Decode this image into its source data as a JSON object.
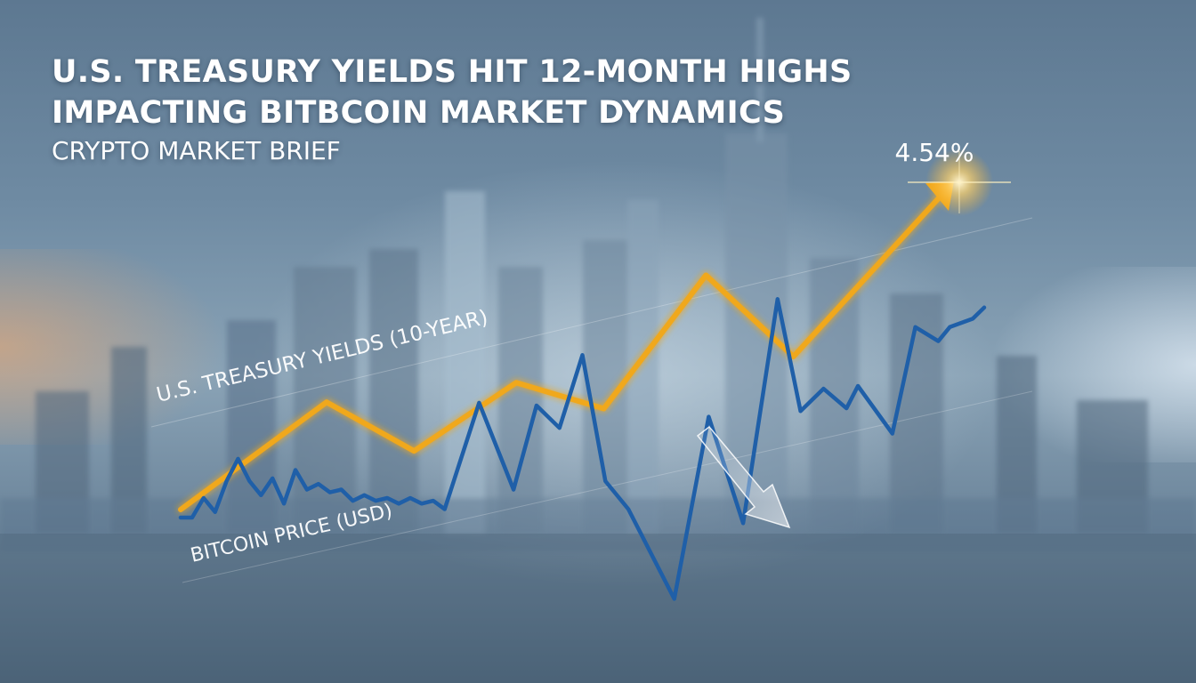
{
  "headline": {
    "line1": "U.S. TREASURY YIELDS HIT 12-MONTH HIGHS",
    "line2": "IMPACTING BITBCOIN MARKET DYNAMICS",
    "subtitle": "CRYPTO MARKET BRIEF"
  },
  "colors": {
    "yield_line": "#f0a81c",
    "bitcoin_line": "#1f5fa8",
    "text": "#ffffff"
  },
  "chart_data": {
    "type": "line",
    "title": "U.S. TREASURY YIELDS HIT 12-MONTH HIGHS IMPACTING BITBCOIN MARKET DYNAMICS",
    "subtitle": "CRYPTO MARKET BRIEF",
    "axes_visible": false,
    "grid": false,
    "series": [
      {
        "name": "U.S. TREASURY YIELDS (10-YEAR)",
        "color": "#f0a81c",
        "end_label": "4.54%",
        "points": [
          [
            0,
            0.0
          ],
          [
            10,
            0.33
          ],
          [
            16,
            0.18
          ],
          [
            23,
            0.39
          ],
          [
            29,
            0.31
          ],
          [
            36,
            0.72
          ],
          [
            42,
            0.47
          ],
          [
            53,
            1.0
          ]
        ]
      },
      {
        "name": "BITCOIN PRICE (USD)",
        "color": "#1f5fa8",
        "points": [
          [
            0,
            0.0
          ],
          [
            1,
            0.0
          ],
          [
            2,
            0.07
          ],
          [
            3,
            0.02
          ],
          [
            4,
            0.13
          ],
          [
            5,
            0.21
          ],
          [
            6,
            0.13
          ],
          [
            7,
            0.08
          ],
          [
            8,
            0.14
          ],
          [
            9,
            0.05
          ],
          [
            10,
            0.17
          ],
          [
            11,
            0.1
          ],
          [
            12,
            0.12
          ],
          [
            13,
            0.09
          ],
          [
            14,
            0.1
          ],
          [
            15,
            0.06
          ],
          [
            16,
            0.08
          ],
          [
            17,
            0.06
          ],
          [
            18,
            0.07
          ],
          [
            19,
            0.05
          ],
          [
            20,
            0.07
          ],
          [
            21,
            0.05
          ],
          [
            22,
            0.06
          ],
          [
            23,
            0.03
          ],
          [
            26,
            0.41
          ],
          [
            29,
            0.1
          ],
          [
            31,
            0.4
          ],
          [
            33,
            0.32
          ],
          [
            35,
            0.58
          ],
          [
            37,
            0.13
          ],
          [
            39,
            0.03
          ],
          [
            43,
            -0.29
          ],
          [
            46,
            0.36
          ],
          [
            49,
            -0.02
          ],
          [
            52,
            0.78
          ],
          [
            54,
            0.38
          ],
          [
            56,
            0.46
          ],
          [
            58,
            0.39
          ],
          [
            59,
            0.47
          ],
          [
            62,
            0.3
          ],
          [
            64,
            0.68
          ],
          [
            66,
            0.63
          ],
          [
            67,
            0.68
          ],
          [
            69,
            0.71
          ],
          [
            70,
            0.75
          ]
        ]
      }
    ]
  }
}
